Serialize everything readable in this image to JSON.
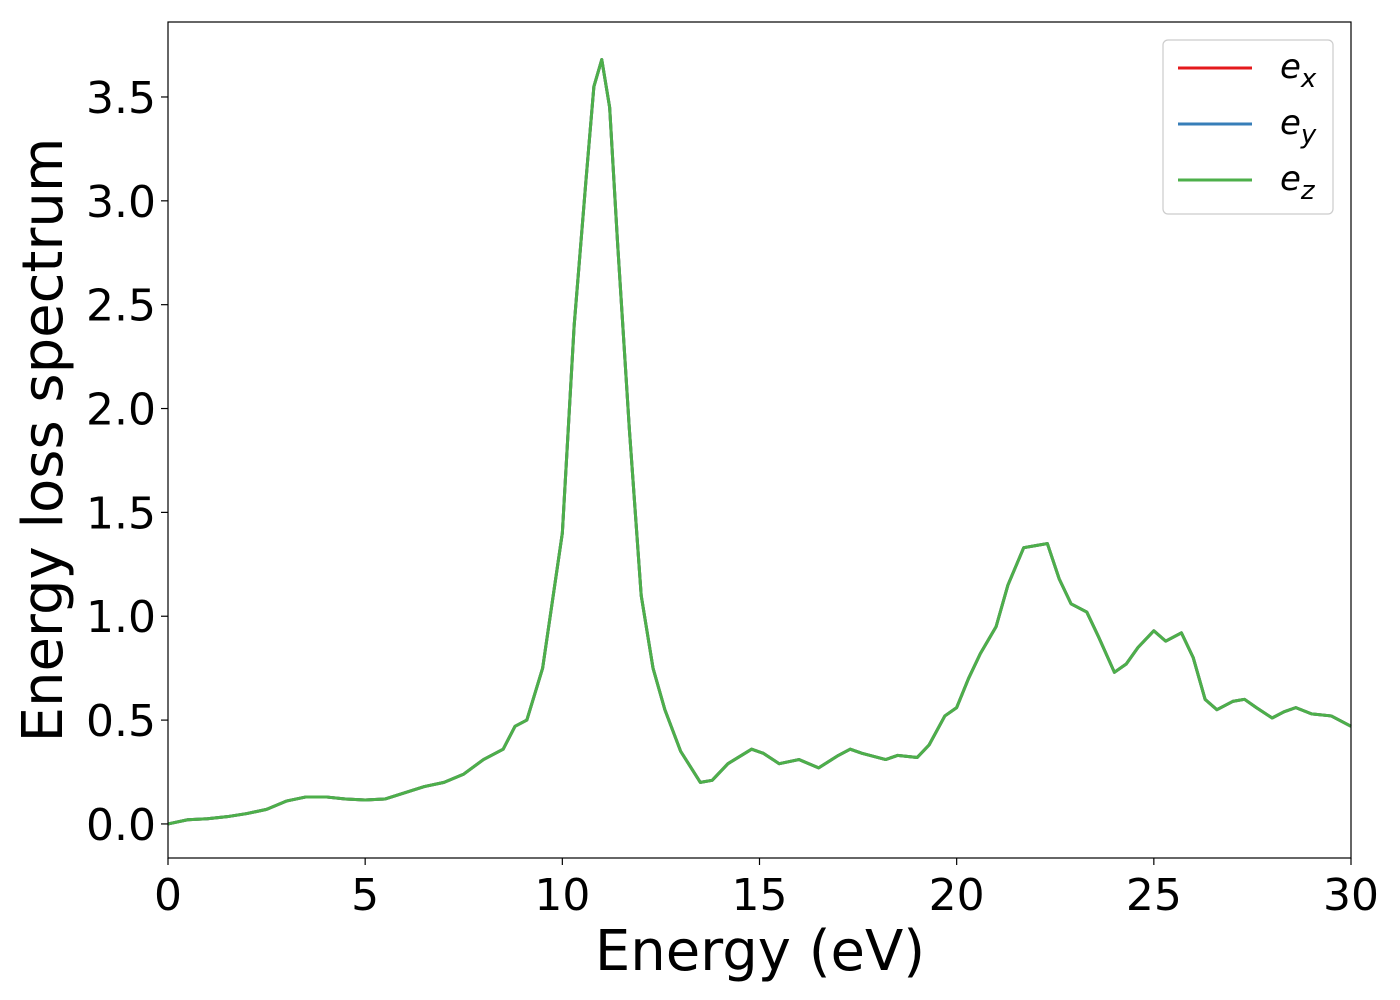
{
  "chart_data": {
    "type": "line",
    "x_label": "Energy (eV)",
    "y_label": "Energy loss spectrum",
    "x": [
      0,
      0.5,
      1,
      1.5,
      2,
      2.5,
      3,
      3.5,
      4,
      4.5,
      5,
      5.5,
      6,
      6.5,
      7,
      7.5,
      8,
      8.5,
      8.8,
      9.1,
      9.5,
      10,
      10.3,
      10.6,
      10.8,
      11,
      11.2,
      11.4,
      11.7,
      12,
      12.3,
      12.6,
      13,
      13.5,
      13.8,
      14.2,
      14.8,
      15.1,
      15.5,
      16,
      16.5,
      17,
      17.3,
      17.6,
      18.2,
      18.5,
      19,
      19.3,
      19.7,
      20,
      20.3,
      20.6,
      21,
      21.3,
      21.7,
      22,
      22.3,
      22.6,
      22.9,
      23.3,
      23.6,
      24,
      24.3,
      24.6,
      25,
      25.3,
      25.7,
      26,
      26.3,
      26.6,
      27,
      27.3,
      27.6,
      28,
      28.3,
      28.6,
      29,
      29.5,
      30
    ],
    "series": [
      {
        "name": "e_x",
        "color": "#e41a1c",
        "values": [
          0,
          0.02,
          0.025,
          0.035,
          0.05,
          0.07,
          0.11,
          0.13,
          0.13,
          0.12,
          0.115,
          0.12,
          0.15,
          0.18,
          0.2,
          0.24,
          0.31,
          0.36,
          0.47,
          0.5,
          0.75,
          1.4,
          2.4,
          3.1,
          3.55,
          3.68,
          3.45,
          2.8,
          1.9,
          1.1,
          0.75,
          0.55,
          0.35,
          0.2,
          0.21,
          0.29,
          0.36,
          0.34,
          0.29,
          0.31,
          0.27,
          0.33,
          0.36,
          0.34,
          0.31,
          0.33,
          0.32,
          0.38,
          0.52,
          0.56,
          0.7,
          0.82,
          0.95,
          1.15,
          1.33,
          1.34,
          1.35,
          1.18,
          1.06,
          1.02,
          0.9,
          0.73,
          0.77,
          0.85,
          0.93,
          0.88,
          0.92,
          0.8,
          0.6,
          0.55,
          0.59,
          0.6,
          0.56,
          0.51,
          0.54,
          0.56,
          0.53,
          0.52,
          0.47
        ]
      },
      {
        "name": "e_y",
        "color": "#377eb8",
        "values": [
          0,
          0.02,
          0.025,
          0.035,
          0.05,
          0.07,
          0.11,
          0.13,
          0.13,
          0.12,
          0.115,
          0.12,
          0.15,
          0.18,
          0.2,
          0.24,
          0.31,
          0.36,
          0.47,
          0.5,
          0.75,
          1.4,
          2.4,
          3.1,
          3.55,
          3.68,
          3.45,
          2.8,
          1.9,
          1.1,
          0.75,
          0.55,
          0.35,
          0.2,
          0.21,
          0.29,
          0.36,
          0.34,
          0.29,
          0.31,
          0.27,
          0.33,
          0.36,
          0.34,
          0.31,
          0.33,
          0.32,
          0.38,
          0.52,
          0.56,
          0.7,
          0.82,
          0.95,
          1.15,
          1.33,
          1.34,
          1.35,
          1.18,
          1.06,
          1.02,
          0.9,
          0.73,
          0.77,
          0.85,
          0.93,
          0.88,
          0.92,
          0.8,
          0.6,
          0.55,
          0.59,
          0.6,
          0.56,
          0.51,
          0.54,
          0.56,
          0.53,
          0.52,
          0.47
        ]
      },
      {
        "name": "e_z",
        "color": "#4daf4a",
        "values": [
          0,
          0.02,
          0.025,
          0.035,
          0.05,
          0.07,
          0.11,
          0.13,
          0.13,
          0.12,
          0.115,
          0.12,
          0.15,
          0.18,
          0.2,
          0.24,
          0.31,
          0.36,
          0.47,
          0.5,
          0.75,
          1.4,
          2.4,
          3.1,
          3.55,
          3.68,
          3.45,
          2.8,
          1.9,
          1.1,
          0.75,
          0.55,
          0.35,
          0.2,
          0.21,
          0.29,
          0.36,
          0.34,
          0.29,
          0.31,
          0.27,
          0.33,
          0.36,
          0.34,
          0.31,
          0.33,
          0.32,
          0.38,
          0.52,
          0.56,
          0.7,
          0.82,
          0.95,
          1.15,
          1.33,
          1.34,
          1.35,
          1.18,
          1.06,
          1.02,
          0.9,
          0.73,
          0.77,
          0.85,
          0.93,
          0.88,
          0.92,
          0.8,
          0.6,
          0.55,
          0.59,
          0.6,
          0.56,
          0.51,
          0.54,
          0.56,
          0.53,
          0.52,
          0.47
        ]
      }
    ],
    "xlim": [
      0,
      30
    ],
    "xticks": [
      0,
      5,
      10,
      15,
      20,
      25,
      30
    ],
    "ylim": [
      -0.164,
      3.861
    ],
    "yticks": [
      {
        "value": 0,
        "label": "0.0"
      },
      0.5,
      {
        "value": 1,
        "label": "1.0"
      },
      1.5,
      {
        "value": 2,
        "label": "2.0"
      },
      2.5,
      {
        "value": 3,
        "label": "3.0"
      },
      3.5
    ],
    "legend": "upper right",
    "grid": false
  }
}
